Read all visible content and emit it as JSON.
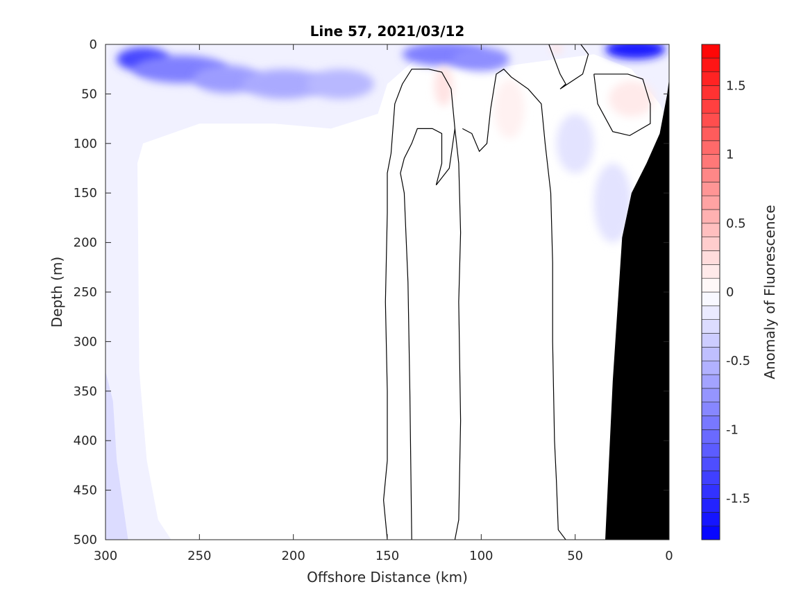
{
  "chart_data": {
    "type": "heatmap",
    "title": "Line 57, 2021/03/12",
    "xlabel": "Offshore Distance (km)",
    "ylabel": "Depth (m)",
    "colorbar_label": "Anomaly of Fluorescence",
    "xlim": [
      300,
      0
    ],
    "ylim": [
      500,
      0
    ],
    "x_reversed": true,
    "y_reversed": true,
    "x_ticks": [
      300,
      250,
      200,
      150,
      100,
      50,
      0
    ],
    "y_ticks": [
      0,
      50,
      100,
      150,
      200,
      250,
      300,
      350,
      400,
      450,
      500
    ],
    "colorbar_range": [
      -1.8,
      1.8
    ],
    "colorbar_ticks": [
      -1.5,
      -1,
      -0.5,
      0,
      0.5,
      1,
      1.5
    ],
    "colorbar_tick_labels": [
      "-1.5",
      "-1",
      "-0.5",
      "0",
      "0.5",
      "1",
      "1.5"
    ],
    "colormap": {
      "negative": "#0000ff",
      "zero": "#ffffff",
      "positive": "#ff0000"
    },
    "contour_level": 0,
    "bathymetry_color": "#000000",
    "anomaly_patches": [
      {
        "x": 280,
        "depth": 15,
        "value": -1.3,
        "rx": 14,
        "ry": 12
      },
      {
        "x": 260,
        "depth": 25,
        "value": -0.9,
        "rx": 25,
        "ry": 14
      },
      {
        "x": 235,
        "depth": 35,
        "value": -0.7,
        "rx": 18,
        "ry": 14
      },
      {
        "x": 205,
        "depth": 40,
        "value": -0.6,
        "rx": 22,
        "ry": 15
      },
      {
        "x": 175,
        "depth": 40,
        "value": -0.5,
        "rx": 18,
        "ry": 15
      },
      {
        "x": 120,
        "depth": 10,
        "value": -0.9,
        "rx": 22,
        "ry": 12
      },
      {
        "x": 100,
        "depth": 15,
        "value": -0.8,
        "rx": 15,
        "ry": 12
      },
      {
        "x": 18,
        "depth": 5,
        "value": -1.6,
        "rx": 16,
        "ry": 10
      },
      {
        "x": 120,
        "depth": 42,
        "value": 0.2,
        "rx": 5,
        "ry": 20
      },
      {
        "x": 85,
        "depth": 65,
        "value": 0.1,
        "rx": 8,
        "ry": 30
      },
      {
        "x": 20,
        "depth": 55,
        "value": 0.15,
        "rx": 12,
        "ry": 18
      },
      {
        "x": 60,
        "depth": 4,
        "value": 0.2,
        "rx": 3,
        "ry": 5
      },
      {
        "x": 50,
        "depth": 100,
        "value": -0.2,
        "rx": 10,
        "ry": 30
      },
      {
        "x": 30,
        "depth": 160,
        "value": -0.2,
        "rx": 10,
        "ry": 40
      }
    ],
    "contours": [
      [
        [
          150,
          500
        ],
        [
          152,
          460
        ],
        [
          150,
          420
        ],
        [
          150,
          350
        ],
        [
          151,
          260
        ],
        [
          150,
          170
        ],
        [
          150,
          130
        ],
        [
          148,
          110
        ],
        [
          146,
          60
        ],
        [
          142,
          40
        ],
        [
          137,
          25
        ],
        [
          128,
          25
        ],
        [
          121,
          28
        ],
        [
          116,
          45
        ],
        [
          114,
          85
        ],
        [
          112,
          120
        ],
        [
          111,
          190
        ],
        [
          112,
          260
        ],
        [
          111,
          380
        ],
        [
          112,
          480
        ],
        [
          114,
          500
        ]
      ],
      [
        [
          137,
          500
        ],
        [
          138,
          350
        ],
        [
          139,
          240
        ],
        [
          141,
          150
        ],
        [
          143,
          130
        ],
        [
          141,
          115
        ],
        [
          137,
          100
        ],
        [
          134,
          85
        ],
        [
          126,
          85
        ],
        [
          121,
          90
        ],
        [
          121,
          120
        ],
        [
          124,
          142
        ],
        [
          117,
          125
        ],
        [
          114,
          85
        ]
      ],
      [
        [
          110,
          85
        ],
        [
          105,
          90
        ],
        [
          101,
          108
        ],
        [
          97,
          100
        ],
        [
          95,
          65
        ],
        [
          92,
          30
        ],
        [
          88,
          25
        ],
        [
          84,
          33
        ],
        [
          75,
          45
        ],
        [
          68,
          60
        ],
        [
          66,
          100
        ],
        [
          63,
          150
        ],
        [
          62,
          220
        ],
        [
          62,
          300
        ],
        [
          61,
          400
        ],
        [
          60,
          440
        ],
        [
          59,
          490
        ],
        [
          55,
          500
        ]
      ],
      [
        [
          64,
          0
        ],
        [
          58,
          30
        ],
        [
          55,
          40
        ],
        [
          58,
          45
        ],
        [
          46,
          30
        ],
        [
          43,
          10
        ],
        [
          47,
          0
        ]
      ],
      [
        [
          40,
          30
        ],
        [
          38,
          60
        ],
        [
          30,
          88
        ],
        [
          21,
          92
        ],
        [
          10,
          80
        ],
        [
          10,
          60
        ],
        [
          14,
          35
        ],
        [
          22,
          30
        ],
        [
          40,
          30
        ]
      ]
    ],
    "bathymetry": [
      [
        34,
        500
      ],
      [
        32,
        420
      ],
      [
        30,
        340
      ],
      [
        25,
        195
      ],
      [
        20,
        150
      ],
      [
        12,
        120
      ],
      [
        5,
        90
      ],
      [
        1,
        50
      ],
      [
        0,
        35
      ],
      [
        0,
        500
      ]
    ]
  }
}
